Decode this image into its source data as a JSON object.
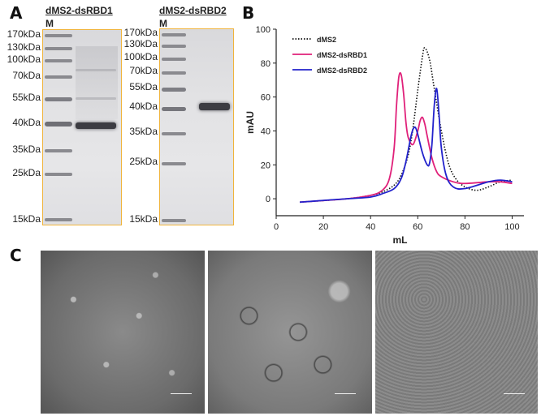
{
  "panels": {
    "a": "A",
    "b": "B",
    "c": "C"
  },
  "gel1": {
    "title": "dMS2-dsRBD1",
    "lane": "M",
    "ladder": [
      "170kDa",
      "130kDa",
      "100kDa",
      "70kDa",
      "55kDa",
      "40kDa",
      "35kDa",
      "25kDa",
      "15kDa"
    ]
  },
  "gel2": {
    "title": "dMS2-dsRBD2",
    "lane": "M",
    "ladder": [
      "170kDa",
      "130kDa",
      "100kDa",
      "70kDa",
      "55kDa",
      "40kDa",
      "35kDa",
      "25kDa",
      "15kDa"
    ]
  },
  "chart_data": {
    "type": "line",
    "title": "",
    "xlabel": "mL",
    "ylabel": "mAU",
    "xlim": [
      0,
      105
    ],
    "ylim": [
      -10,
      100
    ],
    "xticks": [
      0,
      20,
      40,
      60,
      80,
      100
    ],
    "yticks": [
      0,
      20,
      40,
      60,
      80,
      100
    ],
    "legend_position": "top-left",
    "series": [
      {
        "name": "dMS2",
        "color": "#111111",
        "style": "dotted",
        "x": [
          10,
          30,
          40,
          45,
          50,
          53,
          56,
          58,
          60,
          62,
          63,
          65,
          67,
          70,
          73,
          76,
          80,
          85,
          90,
          95,
          100
        ],
        "y": [
          -2,
          0,
          2,
          4,
          8,
          14,
          26,
          42,
          64,
          84,
          89,
          82,
          65,
          40,
          21,
          12,
          7,
          5,
          7,
          10,
          11
        ]
      },
      {
        "name": "dMS2-dsRBD1",
        "color": "#e0217a",
        "style": "solid",
        "x": [
          10,
          30,
          40,
          45,
          48,
          50,
          51,
          52,
          53,
          54,
          55,
          56,
          58,
          60,
          61,
          62,
          63,
          64,
          66,
          68,
          70,
          75,
          80,
          90,
          95,
          100
        ],
        "y": [
          -2,
          0,
          2,
          5,
          12,
          30,
          55,
          72,
          73,
          62,
          45,
          36,
          32,
          40,
          46,
          48,
          44,
          37,
          24,
          16,
          13,
          10,
          9,
          10,
          10,
          9
        ]
      },
      {
        "name": "dMS2-dsRBD2",
        "color": "#2222cc",
        "style": "solid",
        "x": [
          10,
          30,
          40,
          45,
          50,
          53,
          55,
          57,
          58,
          59,
          60,
          62,
          64,
          65,
          66,
          67,
          68,
          69,
          70,
          72,
          75,
          80,
          90,
          95,
          100
        ],
        "y": [
          -2,
          0,
          1,
          3,
          6,
          12,
          22,
          36,
          41,
          42,
          38,
          27,
          20,
          21,
          32,
          55,
          65,
          50,
          30,
          14,
          7,
          6,
          10,
          11,
          10
        ]
      }
    ]
  }
}
